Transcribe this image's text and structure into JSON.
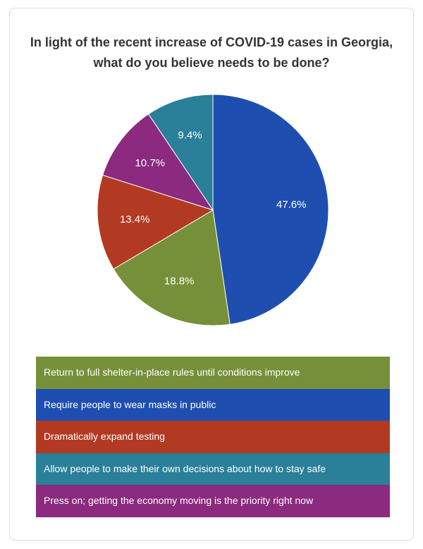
{
  "chart_data": {
    "type": "pie",
    "title": "In light of the recent increase of COVID-19 cases in Georgia, what do you believe needs to be done?",
    "slices": [
      {
        "label": "Require people to wear masks in public",
        "value": 47.6,
        "display": "47.6%",
        "color": "#1e4fb0"
      },
      {
        "label": "Return to full shelter-in-place rules until conditions improve",
        "value": 18.8,
        "display": "18.8%",
        "color": "#76903a"
      },
      {
        "label": "Dramatically expand testing",
        "value": 13.4,
        "display": "13.4%",
        "color": "#b23a22"
      },
      {
        "label": "Press on; getting the economy moving is the priority right now",
        "value": 10.7,
        "display": "10.7%",
        "color": "#8b2a7e"
      },
      {
        "label": "Allow people to make their own decisions about how to stay safe",
        "value": 9.4,
        "display": "9.4%",
        "color": "#2a7f99"
      }
    ],
    "legend": [
      {
        "label": "Return to full shelter-in-place rules until conditions improve",
        "color": "#76903a"
      },
      {
        "label": "Require people to wear masks in public",
        "color": "#1e4fb0"
      },
      {
        "label": "Dramatically expand testing",
        "color": "#b23a22"
      },
      {
        "label": "Allow people to make their own decisions about how to stay safe",
        "color": "#2a7f99"
      },
      {
        "label": "Press on; getting the economy moving is the priority right now",
        "color": "#8b2a7e"
      }
    ],
    "legend_placement": "bottom"
  }
}
